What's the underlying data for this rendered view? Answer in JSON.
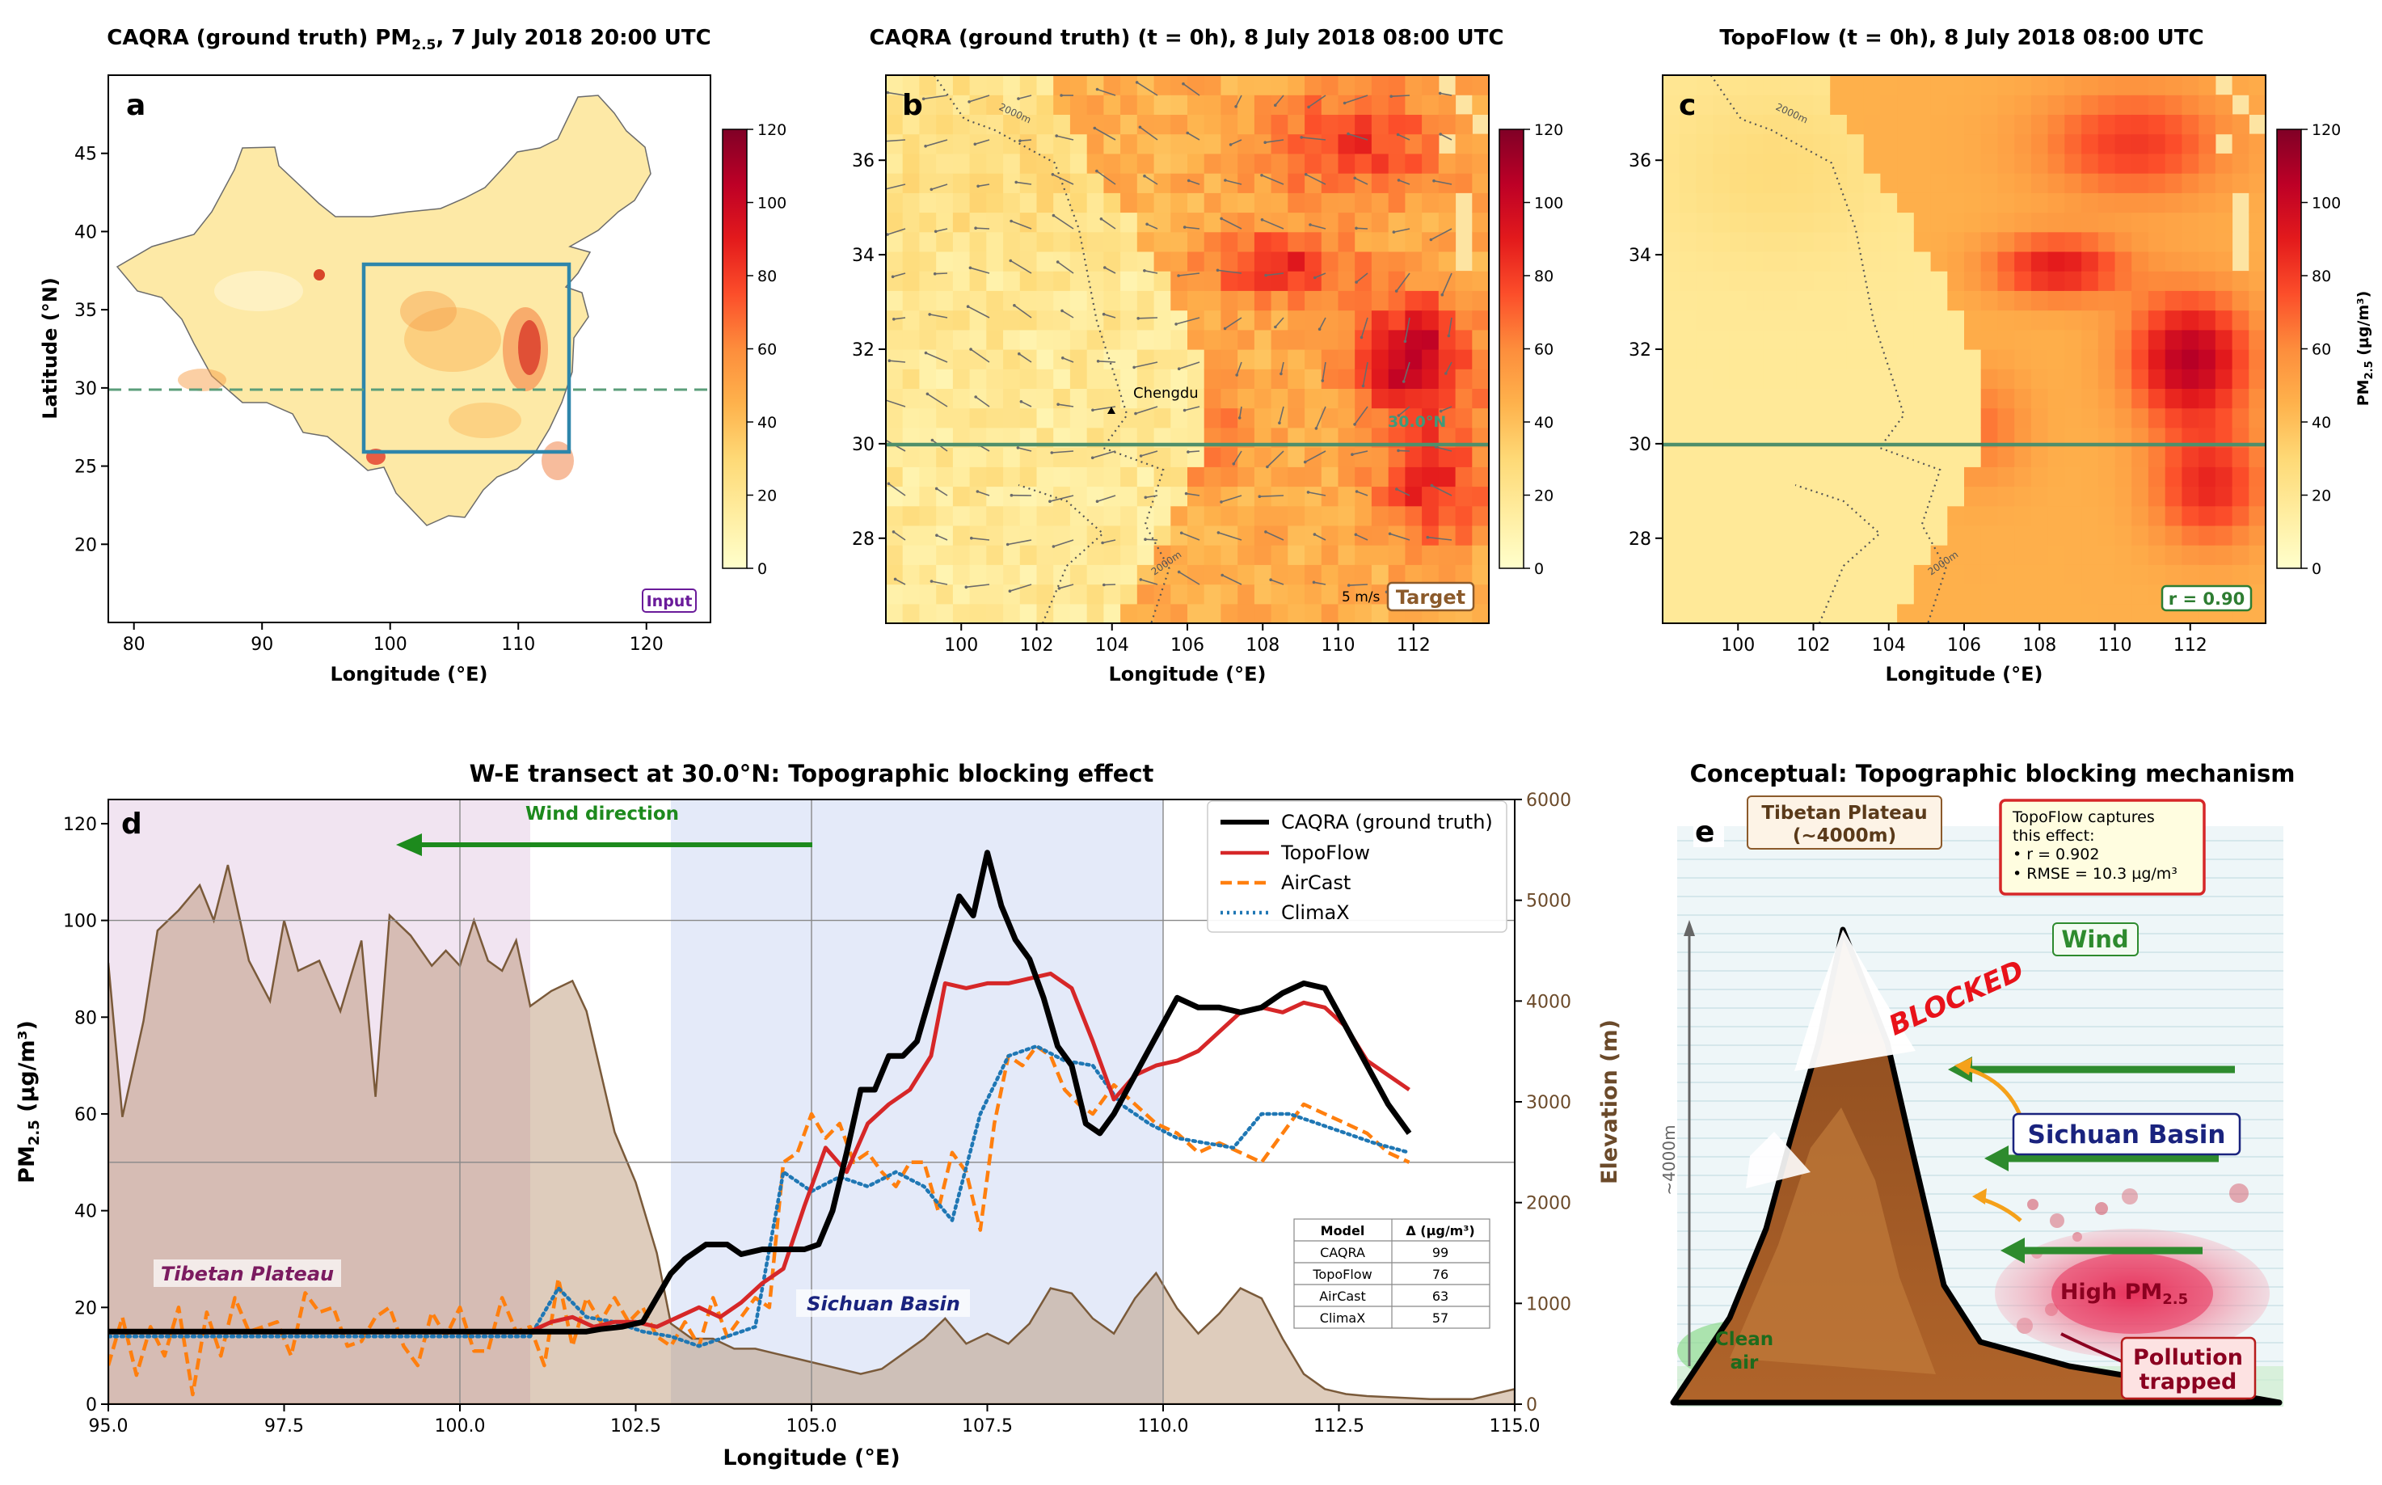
{
  "colorbar": {
    "ticks": [
      "0",
      "20",
      "40",
      "60",
      "80",
      "100",
      "120"
    ],
    "label": "PM2.5 (µg/m³)",
    "colors": [
      "#ffffcc",
      "#ffeda0",
      "#fed976",
      "#feb24c",
      "#fd8d3c",
      "#fc4e2a",
      "#e31a1c",
      "#bd0026",
      "#800026"
    ]
  },
  "panel_a": {
    "title_pre": "CAQRA (ground truth) PM",
    "title_sub": "2.5",
    "title_post": ", 7 July 2018 20:00 UTC",
    "letter": "a",
    "xlabel": "Longitude (°E)",
    "ylabel": "Latitude (°N)",
    "xticks": [
      "80",
      "90",
      "100",
      "110",
      "120"
    ],
    "yticks": [
      "20",
      "25",
      "30",
      "35",
      "40",
      "45"
    ],
    "badge": "Input",
    "badge_color": "#6a1b9a",
    "box_color": "#2e86ab"
  },
  "panel_b": {
    "title": "CAQRA (ground truth) (t = 0h), 8 July 2018 08:00 UTC",
    "letter": "b",
    "xlabel": "Longitude (°E)",
    "xticks": [
      "100",
      "102",
      "104",
      "106",
      "108",
      "110",
      "112"
    ],
    "yticks": [
      "28",
      "30",
      "32",
      "34",
      "36"
    ],
    "city": "Chengdu",
    "transect_label": "30.0°N",
    "contour_label": "2000m",
    "scale_label": "5 m/s",
    "badge": "Target",
    "badge_color": "#8b5a2b"
  },
  "panel_c": {
    "title": "TopoFlow (t = 0h), 8 July 2018 08:00 UTC",
    "letter": "c",
    "xlabel": "Longitude (°E)",
    "xticks": [
      "100",
      "102",
      "104",
      "106",
      "108",
      "110",
      "112"
    ],
    "yticks": [
      "28",
      "30",
      "32",
      "34",
      "36"
    ],
    "contour_label": "2000m",
    "badge": "r = 0.90",
    "badge_color": "#2e7d32",
    "cbar_label_pre": "PM",
    "cbar_label_sub": "2.5",
    "cbar_label_post": " (µg/m³)"
  },
  "panel_d": {
    "title": "W-E transect at 30.0°N: Topographic blocking effect",
    "letter": "d",
    "xlabel": "Longitude (°E)",
    "ylabel_pre": "PM",
    "ylabel_sub": "2.5",
    "ylabel_post": " (µg/m³)",
    "y2label": "Elevation (m)",
    "xticks": [
      "95.0",
      "97.5",
      "100.0",
      "102.5",
      "105.0",
      "107.5",
      "110.0",
      "112.5",
      "115.0"
    ],
    "yticks": [
      "0",
      "20",
      "40",
      "60",
      "80",
      "100",
      "120"
    ],
    "y2ticks": [
      "0",
      "1000",
      "2000",
      "3000",
      "4000",
      "5000",
      "6000"
    ],
    "wind_label": "Wind direction",
    "region_tibet": "Tibetan Plateau",
    "region_sichuan": "Sichuan Basin",
    "legend": [
      "CAQRA (ground truth)",
      "TopoFlow",
      "AirCast",
      "ClimaX"
    ],
    "table": {
      "header": [
        "Model",
        "Δ (µg/m³)"
      ],
      "rows": [
        [
          "CAQRA",
          "99"
        ],
        [
          "TopoFlow",
          "76"
        ],
        [
          "AirCast",
          "63"
        ],
        [
          "ClimaX",
          "57"
        ]
      ]
    }
  },
  "panel_e": {
    "title": "Conceptual: Topographic blocking mechanism",
    "letter": "e",
    "plateau_line1": "Tibetan Plateau",
    "plateau_line2": "(~4000m)",
    "info_lines": [
      "TopoFlow captures",
      "this effect:",
      "• r = 0.902",
      "• RMSE = 10.3 µg/m³"
    ],
    "wind": "Wind",
    "blocked": "BLOCKED",
    "basin": "Sichuan Basin",
    "high_pm_pre": "High PM",
    "high_pm_sub": "2.5",
    "clean1": "Clean",
    "clean2": "air",
    "trapped1": "Pollution",
    "trapped2": "trapped",
    "height_label": "~4000m"
  },
  "chart_data": [
    {
      "type": "heatmap",
      "title": "CAQRA (ground truth) PM2.5, 7 July 2018 20:00 UTC",
      "xlabel": "Longitude (°E)",
      "ylabel": "Latitude (°N)",
      "xlim": [
        78,
        125
      ],
      "ylim": [
        15,
        50
      ],
      "colorbar_range": [
        0,
        120
      ],
      "study_box": {
        "lon": [
          98,
          114
        ],
        "lat": [
          26,
          38
        ]
      },
      "transect_lat": 30
    },
    {
      "type": "heatmap",
      "title": "CAQRA (ground truth) (t = 0h), 8 July 2018 08:00 UTC",
      "xlabel": "Longitude (°E)",
      "xlim": [
        98,
        114
      ],
      "ylim": [
        26,
        38
      ],
      "colorbar_range": [
        0,
        120
      ],
      "city": {
        "name": "Chengdu",
        "lon": 104.07,
        "lat": 30.67
      },
      "transect_lat": 30
    },
    {
      "type": "heatmap",
      "title": "TopoFlow (t = 0h), 8 July 2018 08:00 UTC",
      "xlabel": "Longitude (°E)",
      "xlim": [
        98,
        114
      ],
      "ylim": [
        26,
        38
      ],
      "colorbar_range": [
        0,
        120
      ],
      "transect_lat": 30,
      "r": 0.9
    },
    {
      "type": "line",
      "title": "W-E transect at 30.0°N: Topographic blocking effect",
      "xlabel": "Longitude (°E)",
      "ylabel": "PM2.5 (µg/m³)",
      "y2label": "Elevation (m)",
      "xlim": [
        95,
        115
      ],
      "ylim": [
        0,
        125
      ],
      "y2lim": [
        0,
        6000
      ],
      "grid": true,
      "legend_position": "top-right",
      "shaded_regions": [
        {
          "label": "Tibetan Plateau",
          "x": [
            95,
            101
          ]
        },
        {
          "label": "Sichuan Basin",
          "x": [
            103,
            110
          ]
        }
      ],
      "hlines": [
        50,
        100
      ],
      "vlines": [
        100,
        105,
        110
      ],
      "series": [
        {
          "name": "CAQRA (ground truth)",
          "color": "#000000",
          "style": "solid",
          "x": [
            95.0,
            101.8,
            102.0,
            102.3,
            102.6,
            102.8,
            103.0,
            103.2,
            103.5,
            103.8,
            104.0,
            104.3,
            104.6,
            104.9,
            105.1,
            105.3,
            105.5,
            105.7,
            105.9,
            106.1,
            106.3,
            106.5,
            106.7,
            106.9,
            107.1,
            107.3,
            107.5,
            107.7,
            107.9,
            108.1,
            108.3,
            108.5,
            108.7,
            108.9,
            109.1,
            109.3,
            109.6,
            109.9,
            110.2,
            110.5,
            110.8,
            111.1,
            111.4,
            111.7,
            112.0,
            112.3,
            112.6,
            112.9,
            113.2,
            113.5
          ],
          "y": [
            15,
            15,
            15.5,
            16,
            17,
            22,
            27,
            30,
            33,
            33,
            31,
            32,
            32,
            32,
            33,
            40,
            52,
            65,
            65,
            72,
            72,
            75,
            85,
            95,
            105,
            101,
            114,
            103,
            96,
            92,
            84,
            74,
            70,
            58,
            56,
            60,
            68,
            76,
            84,
            82,
            82,
            81,
            82,
            85,
            87,
            86,
            78,
            70,
            62,
            56
          ]
        },
        {
          "name": "TopoFlow",
          "color": "#d62728",
          "style": "solid",
          "x": [
            95.0,
            101.0,
            101.3,
            101.6,
            101.9,
            102.2,
            102.5,
            102.8,
            103.1,
            103.4,
            103.7,
            104.0,
            104.3,
            104.6,
            104.9,
            105.2,
            105.5,
            105.8,
            106.1,
            106.4,
            106.7,
            106.9,
            107.2,
            107.5,
            107.8,
            108.1,
            108.4,
            108.7,
            109.0,
            109.3,
            109.6,
            109.9,
            110.2,
            110.5,
            110.8,
            111.1,
            111.4,
            111.7,
            112.0,
            112.3,
            112.6,
            112.9,
            113.2,
            113.5
          ],
          "y": [
            15,
            15,
            17,
            18,
            16,
            17,
            17,
            16,
            18,
            20,
            18,
            21,
            25,
            28,
            41,
            53,
            48,
            58,
            62,
            65,
            72,
            87,
            86,
            87,
            87,
            88,
            89,
            86,
            75,
            63,
            68,
            70,
            71,
            73,
            77,
            81,
            82,
            81,
            83,
            82,
            78,
            71,
            68,
            65
          ]
        },
        {
          "name": "AirCast",
          "color": "#ff7f0e",
          "style": "dashed",
          "x": [
            95.0,
            95.2,
            95.4,
            95.6,
            95.8,
            96.0,
            96.2,
            96.4,
            96.6,
            96.8,
            97.0,
            97.2,
            97.4,
            97.6,
            97.8,
            98.0,
            98.2,
            98.4,
            98.6,
            98.8,
            99.0,
            99.2,
            99.4,
            99.6,
            99.8,
            100.0,
            100.2,
            100.4,
            100.6,
            100.8,
            101.0,
            101.2,
            101.4,
            101.6,
            101.8,
            102.0,
            102.2,
            102.4,
            102.6,
            102.8,
            103.0,
            103.2,
            103.4,
            103.6,
            103.8,
            104.0,
            104.2,
            104.4,
            104.6,
            104.8,
            105.0,
            105.2,
            105.4,
            105.6,
            105.8,
            106.0,
            106.2,
            106.4,
            106.6,
            106.8,
            107.0,
            107.2,
            107.4,
            107.6,
            107.8,
            108.0,
            108.2,
            108.4,
            108.6,
            108.8,
            109.0,
            109.3,
            109.6,
            109.9,
            110.2,
            110.5,
            110.8,
            111.1,
            111.4,
            111.7,
            112.0,
            112.3,
            112.6,
            112.9,
            113.2,
            113.5
          ],
          "y": [
            8,
            18,
            6,
            16,
            10,
            20,
            2,
            19,
            10,
            22,
            15,
            16,
            17,
            10,
            23,
            19,
            20,
            12,
            13,
            18,
            20,
            12,
            8,
            19,
            14,
            20,
            11,
            11,
            22,
            15,
            16,
            8,
            26,
            12,
            22,
            17,
            22,
            17,
            20,
            14,
            12,
            17,
            12,
            22,
            14,
            18,
            22,
            20,
            50,
            52,
            60,
            55,
            58,
            50,
            52,
            48,
            45,
            50,
            50,
            40,
            52,
            48,
            36,
            58,
            72,
            70,
            74,
            72,
            65,
            62,
            60,
            66,
            62,
            58,
            56,
            52,
            54,
            52,
            50,
            56,
            62,
            60,
            58,
            56,
            52,
            50
          ]
        },
        {
          "name": "ClimaX",
          "color": "#1f77b4",
          "style": "dotted",
          "x": [
            95.0,
            96.0,
            97.0,
            98.0,
            99.0,
            100.0,
            101.0,
            101.4,
            101.8,
            102.2,
            102.6,
            103.0,
            103.4,
            103.8,
            104.2,
            104.6,
            105.0,
            105.4,
            105.8,
            106.2,
            106.6,
            107.0,
            107.4,
            107.8,
            108.2,
            108.6,
            109.0,
            109.4,
            109.8,
            110.2,
            110.6,
            111.0,
            111.4,
            111.8,
            112.2,
            112.6,
            113.0,
            113.5
          ],
          "y": [
            14,
            14,
            14,
            14,
            14,
            14,
            14,
            24,
            18,
            17,
            15,
            14,
            12,
            14,
            16,
            48,
            44,
            47,
            45,
            48,
            45,
            38,
            60,
            72,
            74,
            71,
            70,
            62,
            58,
            55,
            54,
            53,
            60,
            60,
            58,
            56,
            54,
            52
          ]
        },
        {
          "name": "Elevation",
          "color": "#8b6b4a",
          "axis": "y2",
          "style": "filled",
          "x": [
            95.0,
            95.2,
            95.5,
            95.7,
            96.0,
            96.3,
            96.5,
            96.7,
            97.0,
            97.3,
            97.5,
            97.7,
            98.0,
            98.3,
            98.6,
            98.8,
            99.0,
            99.3,
            99.6,
            99.8,
            100.0,
            100.2,
            100.4,
            100.6,
            100.8,
            101.0,
            101.3,
            101.6,
            101.8,
            102.0,
            102.2,
            102.5,
            102.8,
            103.0,
            103.3,
            103.6,
            103.9,
            104.2,
            104.5,
            104.8,
            105.1,
            105.4,
            105.7,
            106.0,
            106.3,
            106.6,
            106.9,
            107.2,
            107.5,
            107.8,
            108.1,
            108.4,
            108.7,
            109.0,
            109.3,
            109.6,
            109.9,
            110.2,
            110.5,
            110.8,
            111.1,
            111.4,
            111.7,
            112.0,
            112.3,
            112.6,
            112.9,
            113.2,
            113.5,
            113.8,
            114.1,
            114.4,
            114.7,
            115.0
          ],
          "y": [
            4380,
            2850,
            3800,
            4700,
            4900,
            5150,
            4800,
            5350,
            4400,
            4000,
            4800,
            4300,
            4400,
            3900,
            4600,
            3050,
            4850,
            4650,
            4350,
            4500,
            4350,
            4800,
            4400,
            4300,
            4600,
            3950,
            4100,
            4200,
            3900,
            3300,
            2700,
            2200,
            1500,
            800,
            650,
            650,
            550,
            550,
            500,
            450,
            400,
            350,
            300,
            350,
            500,
            650,
            850,
            600,
            700,
            600,
            800,
            1150,
            1100,
            850,
            700,
            1050,
            1300,
            950,
            700,
            900,
            1150,
            1050,
            650,
            300,
            150,
            100,
            80,
            70,
            60,
            50,
            50,
            50,
            100,
            150
          ]
        }
      ],
      "table": {
        "columns": [
          "Model",
          "Δ (µg/m³)"
        ],
        "rows": [
          [
            "CAQRA",
            99
          ],
          [
            "TopoFlow",
            76
          ],
          [
            "AirCast",
            63
          ],
          [
            "ClimaX",
            57
          ]
        ]
      }
    }
  ]
}
